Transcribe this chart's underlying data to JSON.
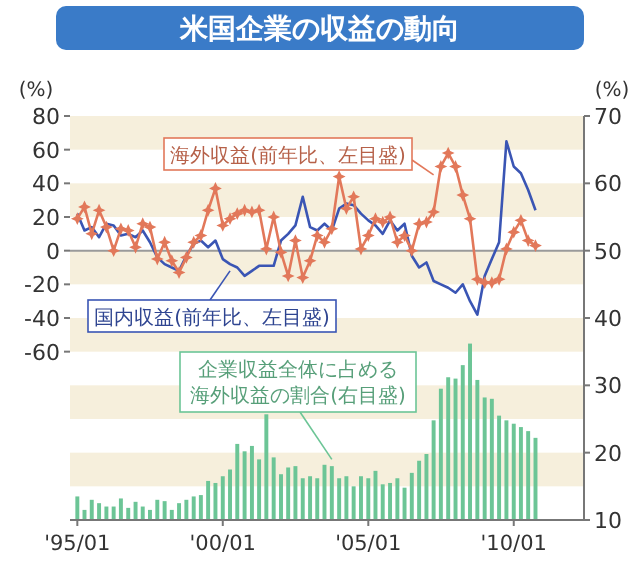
{
  "chart_data": {
    "type": "line",
    "title": "米国企業の収益の動向",
    "ylabel": "(%)",
    "y2label": "(%)",
    "x": [
      "1995-01",
      "1995-04",
      "1995-07",
      "1995-10",
      "1996-01",
      "1996-04",
      "1996-07",
      "1996-10",
      "1997-01",
      "1997-04",
      "1997-07",
      "1997-10",
      "1998-01",
      "1998-04",
      "1998-07",
      "1998-10",
      "1999-01",
      "1999-04",
      "1999-07",
      "1999-10",
      "2000-01",
      "2000-04",
      "2000-07",
      "2000-10",
      "2001-01",
      "2001-04",
      "2001-07",
      "2001-10",
      "2002-01",
      "2002-04",
      "2002-07",
      "2002-10",
      "2003-01",
      "2003-04",
      "2003-07",
      "2003-10",
      "2004-01",
      "2004-04",
      "2004-07",
      "2004-10",
      "2005-01",
      "2005-04",
      "2005-07",
      "2005-10",
      "2006-01",
      "2006-04",
      "2006-07",
      "2006-10",
      "2007-01",
      "2007-04",
      "2007-07",
      "2007-10",
      "2008-01",
      "2008-04",
      "2008-07",
      "2008-10",
      "2009-01",
      "2009-04",
      "2009-07",
      "2009-10",
      "2010-01",
      "2010-04",
      "2010-07",
      "2010-10"
    ],
    "xlim": [
      "1994-10",
      "2012-06"
    ],
    "xticks": [
      {
        "value": "1995-01",
        "label": "'95/01"
      },
      {
        "value": "2000-01",
        "label": "'00/01"
      },
      {
        "value": "2005-01",
        "label": "'05/01"
      },
      {
        "value": "2010-01",
        "label": "'10/01"
      }
    ],
    "ylim": [
      -160,
      80
    ],
    "yticks": [
      80,
      60,
      40,
      20,
      0,
      -20,
      -40,
      -60
    ],
    "y2lim": [
      10,
      70
    ],
    "y2ticks": [
      10,
      20,
      30,
      40,
      50,
      60,
      70
    ],
    "bands": [
      {
        "axis": "y",
        "from": 60,
        "to": 80,
        "color": "#f6efdc"
      },
      {
        "axis": "y",
        "from": 20,
        "to": 40,
        "color": "#f6efdc"
      },
      {
        "axis": "y",
        "from": -20,
        "to": 0,
        "color": "#f6efdc"
      },
      {
        "axis": "y",
        "from": -60,
        "to": -40,
        "color": "#f6efdc"
      },
      {
        "axis": "y",
        "from": -100,
        "to": -80,
        "color": "#f6efdc"
      },
      {
        "axis": "y",
        "from": -140,
        "to": -120,
        "color": "#f6efdc"
      }
    ],
    "ref_lines": [
      {
        "axis": "y",
        "value": 0,
        "color": "#9a9a9a"
      }
    ],
    "series": [
      {
        "name": "企業収益全体に占める海外収益の割合(右目盛)",
        "type": "bar",
        "axis": "y2",
        "color": "#6cc596",
        "values": [
          13.5,
          11.5,
          13,
          12.5,
          12,
          12,
          13.2,
          11.8,
          12.7,
          12,
          11.5,
          13,
          12.8,
          11.5,
          12.5,
          13,
          13.5,
          13.7,
          15.8,
          15.5,
          16.5,
          17.5,
          21.3,
          20.2,
          21,
          19,
          25.7,
          19.3,
          16.8,
          17.8,
          18,
          16.2,
          16.5,
          16.2,
          18.2,
          18,
          16.2,
          16.5,
          15,
          16.5,
          16.2,
          17.3,
          15.3,
          15.5,
          16.2,
          14.8,
          17,
          18.8,
          19.8,
          24.8,
          29.5,
          31.2,
          31,
          33,
          36.2,
          30.8,
          28.2,
          28,
          25.5,
          24.8,
          24.3,
          23.8,
          23.2,
          22.2
        ]
      },
      {
        "name": "国内収益(前年比、左目盛)",
        "marker": "none",
        "color": "#3a55b4",
        "values": [
          22,
          12,
          14,
          8,
          16,
          15,
          9,
          10,
          8,
          12,
          5,
          -4,
          -8,
          -10,
          -12,
          -3,
          4,
          6,
          2,
          6,
          -5,
          -8,
          -10,
          -15,
          -12,
          -9,
          -9,
          -9,
          6,
          10,
          15,
          32,
          14,
          12,
          16,
          12,
          25,
          28,
          27,
          22,
          18,
          15,
          10,
          18,
          12,
          16,
          -3,
          -10,
          -7,
          -18,
          -20,
          -22,
          -25,
          -20,
          -30,
          -38,
          -15,
          -5,
          5,
          65,
          50,
          46,
          36,
          24
        ]
      },
      {
        "name": "海外収益(前年比、左目盛)",
        "marker": "star",
        "color": "#e2785a",
        "values": [
          19,
          26,
          10,
          24,
          14,
          0,
          13,
          12,
          2,
          16,
          14,
          -5,
          5,
          -6,
          -13,
          -4,
          5,
          9,
          24,
          37,
          15,
          19,
          22,
          24,
          23,
          24,
          1,
          20,
          -1,
          -15,
          6,
          -16,
          -6,
          9,
          5,
          13,
          44,
          25,
          32,
          1,
          9,
          19,
          17,
          20,
          5,
          9,
          0,
          16,
          17,
          23,
          50,
          58,
          50,
          33,
          19,
          -17,
          -19,
          -19,
          -17,
          1,
          11,
          18,
          6,
          3
        ]
      }
    ]
  }
}
